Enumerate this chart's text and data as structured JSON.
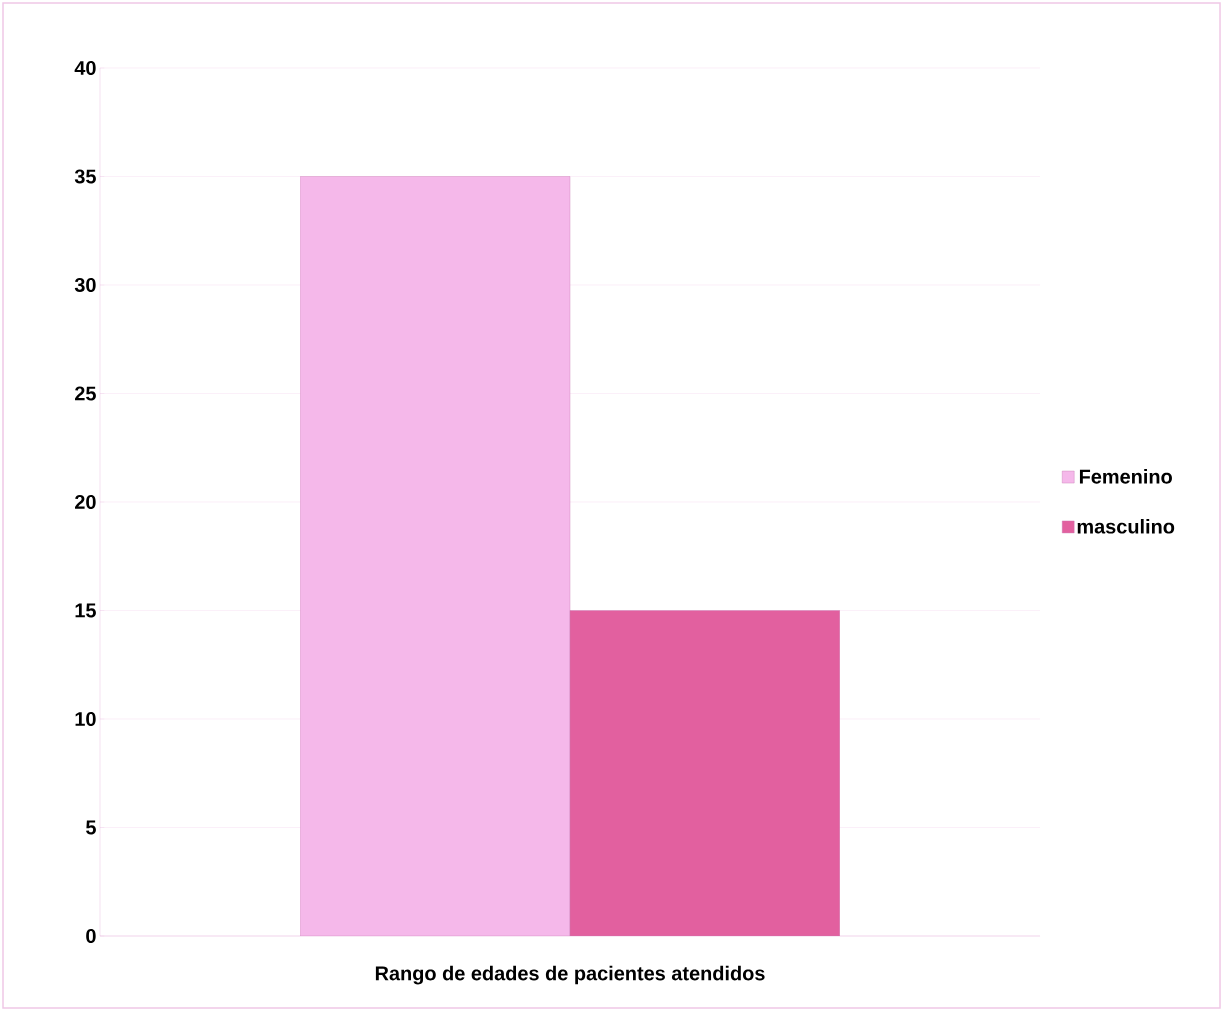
{
  "chart_data": {
    "type": "bar",
    "categories": [
      "Rango de edades de pacientes atendidos"
    ],
    "series": [
      {
        "name": "Femenino",
        "color": "#f5b8ea",
        "values": [
          35
        ]
      },
      {
        "name": "masculino",
        "color": "#e2609f",
        "values": [
          15
        ]
      }
    ],
    "ylim": [
      0,
      40
    ],
    "yticks": [
      0,
      5,
      10,
      15,
      20,
      25,
      30,
      35,
      40
    ],
    "grid": "y",
    "legend": "right"
  }
}
